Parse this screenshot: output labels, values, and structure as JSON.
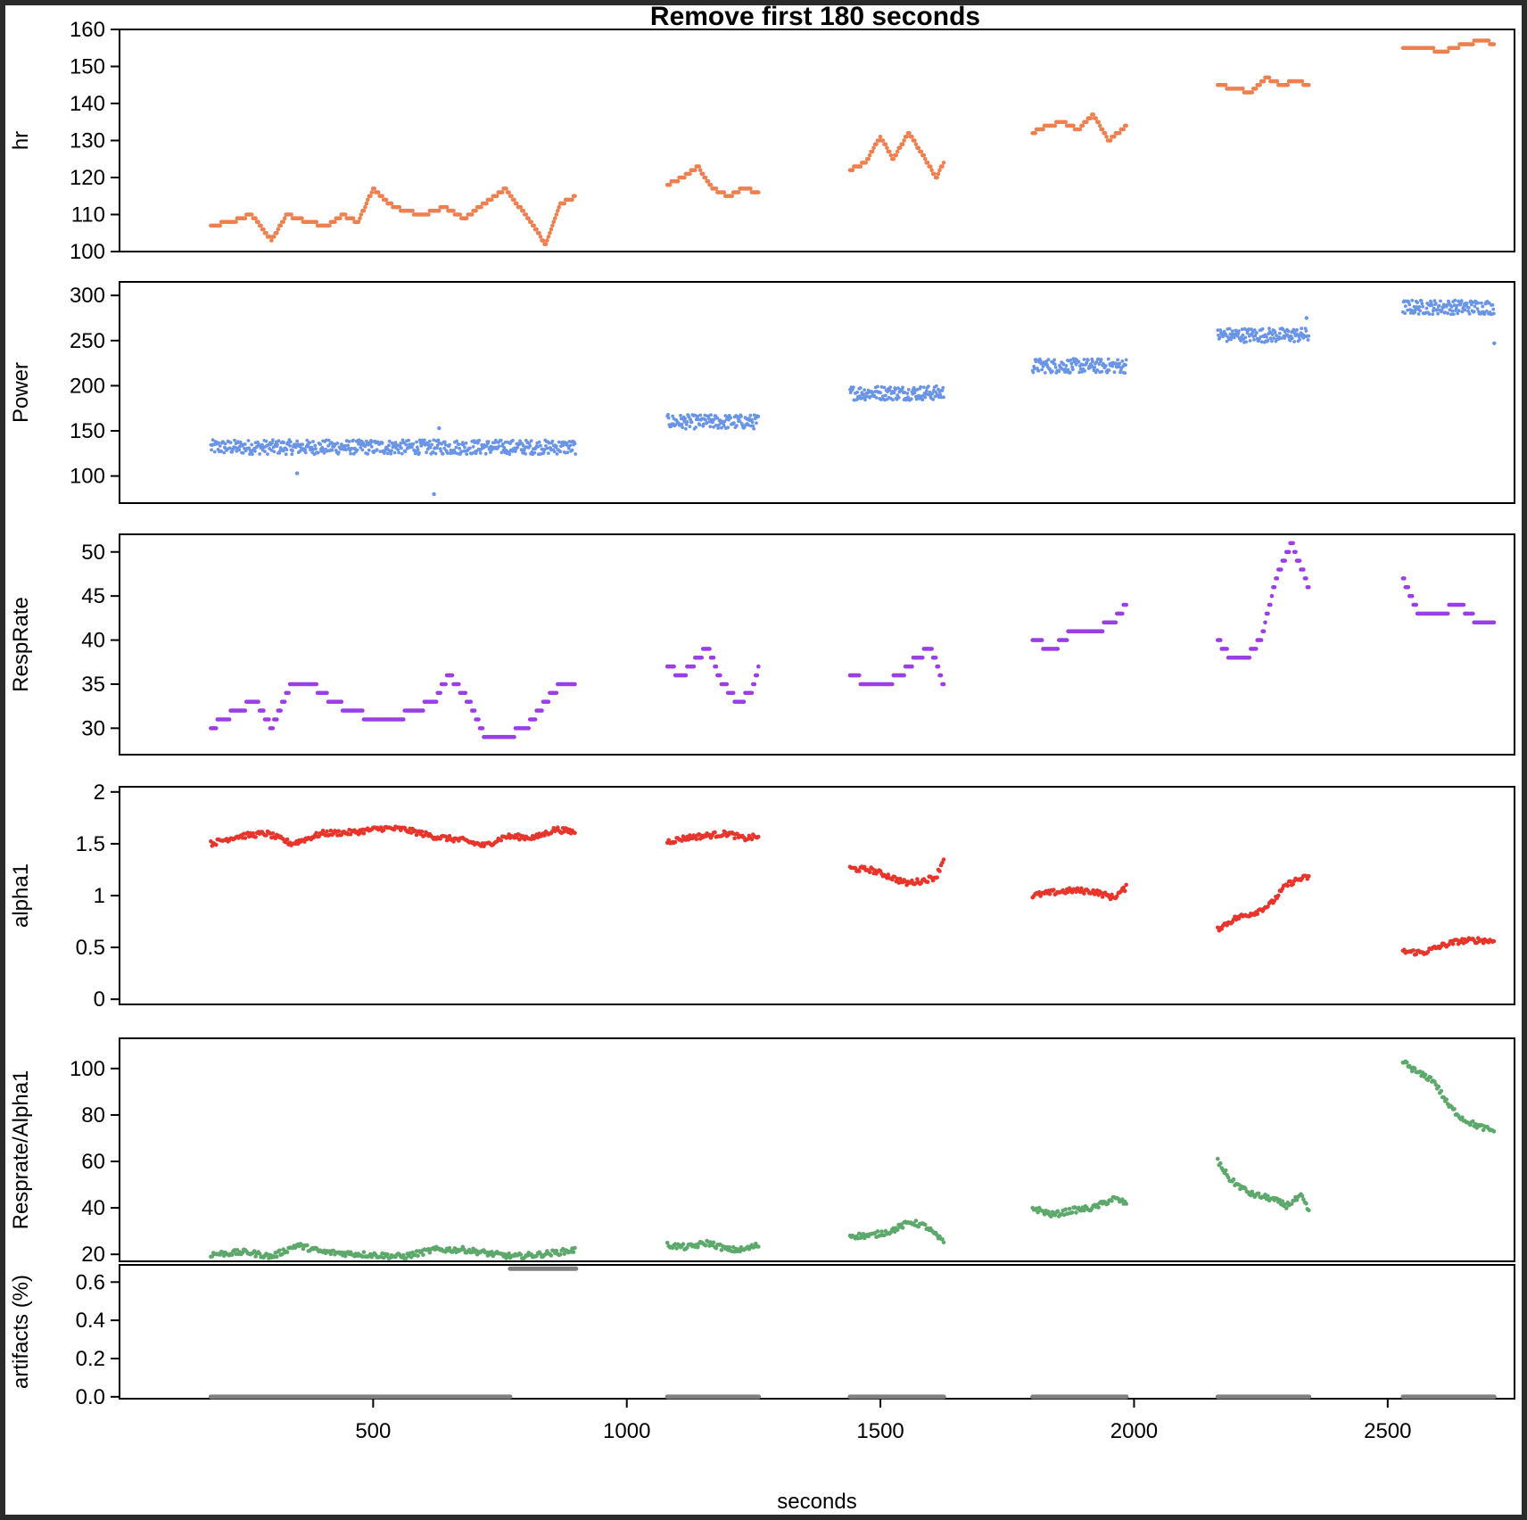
{
  "chart_data": {
    "type": "scatter",
    "title": "Remove first 180 seconds",
    "xlabel": "seconds",
    "xlim": [
      0,
      2750
    ],
    "xticks": [
      "500",
      "1000",
      "1500",
      "2000",
      "2500"
    ],
    "segments": [
      [
        180,
        900
      ],
      [
        1080,
        1260
      ],
      [
        1440,
        1625
      ],
      [
        1800,
        1985
      ],
      [
        2165,
        2345
      ],
      [
        2530,
        2710
      ]
    ],
    "panels": [
      {
        "ylabel": "hr",
        "color": "#EE8050",
        "ylim": [
          100,
          160
        ],
        "yticks": [
          "100",
          "110",
          "120",
          "130",
          "140",
          "150",
          "160"
        ],
        "series": [
          {
            "x": [
              180,
              220,
              260,
              300,
              330,
              370,
              410,
              440,
              470,
              500,
              530,
              560,
              600,
              640,
              680,
              720,
              760,
              800,
              840,
              870,
              900
            ],
            "y": [
              107,
              108,
              110,
              103,
              110,
              108,
              107,
              110,
              108,
              117,
              113,
              111,
              110,
              112,
              109,
              113,
              117,
              110,
              102,
              113,
              115
            ]
          },
          {
            "x": [
              1080,
              1110,
              1140,
              1170,
              1200,
              1230,
              1260
            ],
            "y": [
              118,
              120,
              123,
              117,
              115,
              117,
              116
            ]
          },
          {
            "x": [
              1440,
              1470,
              1500,
              1525,
              1555,
              1580,
              1610,
              1625
            ],
            "y": [
              122,
              124,
              131,
              125,
              132,
              127,
              120,
              124
            ]
          },
          {
            "x": [
              1800,
              1830,
              1860,
              1890,
              1920,
              1950,
              1985
            ],
            "y": [
              132,
              134,
              135,
              133,
              137,
              130,
              134
            ]
          },
          {
            "x": [
              2165,
              2200,
              2230,
              2260,
              2290,
              2320,
              2345
            ],
            "y": [
              145,
              144,
              143,
              147,
              145,
              146,
              145
            ]
          },
          {
            "x": [
              2530,
              2570,
              2610,
              2650,
              2690,
              2710
            ],
            "y": [
              155,
              155,
              154,
              156,
              157,
              156
            ]
          }
        ]
      },
      {
        "ylabel": "Power",
        "color": "#6A95E6",
        "ylim": [
          70,
          315
        ],
        "yticks": [
          "100",
          "150",
          "200",
          "250",
          "300"
        ],
        "series": [
          {
            "x": [
              180,
              900
            ],
            "y": [
              132,
              132
            ],
            "outliers": [
              [
                350,
                103
              ],
              [
                620,
                80
              ],
              [
                630,
                153
              ]
            ]
          },
          {
            "x": [
              1080,
              1260
            ],
            "y": [
              160,
              160
            ]
          },
          {
            "x": [
              1440,
              1625
            ],
            "y": [
              192,
              192
            ]
          },
          {
            "x": [
              1800,
              1985
            ],
            "y": [
              222,
              222
            ]
          },
          {
            "x": [
              2165,
              2345
            ],
            "y": [
              256,
              256
            ],
            "outliers": [
              [
                2340,
                275
              ]
            ]
          },
          {
            "x": [
              2530,
              2710
            ],
            "y": [
              287,
              287
            ],
            "outliers": [
              [
                2710,
                247
              ]
            ]
          }
        ]
      },
      {
        "ylabel": "RespRate",
        "color": "#9B3EE8",
        "ylim": [
          27,
          52
        ],
        "yticks": [
          "30",
          "35",
          "40",
          "45",
          "50"
        ],
        "series": [
          {
            "x": [
              180,
              230,
              270,
              300,
              340,
              380,
              420,
              460,
              500,
              540,
              580,
              620,
              650,
              690,
              720,
              760,
              800,
              840,
              870,
              900
            ],
            "y": [
              30,
              32,
              33,
              30,
              35,
              35,
              33,
              32,
              31,
              31,
              32,
              33,
              36,
              33,
              29,
              29,
              30,
              33,
              35,
              35
            ]
          },
          {
            "x": [
              1080,
              1110,
              1140,
              1160,
              1190,
              1220,
              1245,
              1260
            ],
            "y": [
              37,
              36,
              38,
              39,
              35,
              33,
              34,
              37
            ]
          },
          {
            "x": [
              1440,
              1480,
              1510,
              1540,
              1570,
              1600,
              1625
            ],
            "y": [
              36,
              35,
              35,
              36,
              38,
              39,
              35
            ]
          },
          {
            "x": [
              1800,
              1840,
              1880,
              1920,
              1960,
              1985
            ],
            "y": [
              40,
              39,
              41,
              41,
              42,
              44
            ]
          },
          {
            "x": [
              2165,
              2190,
              2220,
              2250,
              2280,
              2310,
              2345
            ],
            "y": [
              40,
              38,
              38,
              40,
              47,
              51,
              46
            ]
          },
          {
            "x": [
              2530,
              2560,
              2600,
              2640,
              2680,
              2710
            ],
            "y": [
              47,
              43,
              43,
              44,
              42,
              42
            ]
          }
        ]
      },
      {
        "ylabel": "alpha1",
        "color": "#E8352B",
        "ylim": [
          -0.05,
          2.05
        ],
        "yticks": [
          "0",
          "0.5",
          "1",
          "1.5",
          "2"
        ],
        "series": [
          {
            "x": [
              180,
              230,
              290,
              340,
              400,
              460,
              520,
              560,
              620,
              680,
              720,
              760,
              820,
              860,
              900
            ],
            "y": [
              1.5,
              1.57,
              1.6,
              1.5,
              1.6,
              1.61,
              1.65,
              1.64,
              1.57,
              1.53,
              1.48,
              1.57,
              1.56,
              1.64,
              1.61
            ]
          },
          {
            "x": [
              1080,
              1120,
              1160,
              1200,
              1230,
              1260
            ],
            "y": [
              1.52,
              1.56,
              1.58,
              1.6,
              1.55,
              1.57
            ]
          },
          {
            "x": [
              1440,
              1480,
              1520,
              1550,
              1580,
              1610,
              1625
            ],
            "y": [
              1.26,
              1.25,
              1.18,
              1.12,
              1.14,
              1.18,
              1.36
            ]
          },
          {
            "x": [
              1800,
              1840,
              1880,
              1920,
              1960,
              1985
            ],
            "y": [
              1.0,
              1.03,
              1.05,
              1.04,
              0.98,
              1.08
            ]
          },
          {
            "x": [
              2165,
              2200,
              2240,
              2270,
              2300,
              2320,
              2345
            ],
            "y": [
              0.68,
              0.78,
              0.84,
              0.92,
              1.1,
              1.15,
              1.18
            ]
          },
          {
            "x": [
              2530,
              2570,
              2610,
              2640,
              2680,
              2710
            ],
            "y": [
              0.46,
              0.45,
              0.52,
              0.56,
              0.57,
              0.56
            ]
          }
        ]
      },
      {
        "ylabel": "Resprate/Alpha1",
        "color": "#5DA86B",
        "ylim": [
          17,
          113
        ],
        "yticks": [
          "20",
          "40",
          "60",
          "80",
          "100"
        ],
        "series": [
          {
            "x": [
              180,
              250,
              300,
              350,
              400,
              480,
              560,
              620,
              680,
              740,
              780,
              830,
              870,
              900
            ],
            "y": [
              20,
              21,
              19,
              24,
              21,
              20,
              19,
              22,
              22,
              20,
              19,
              20,
              21,
              22
            ]
          },
          {
            "x": [
              1080,
              1120,
              1160,
              1200,
              1230,
              1260
            ],
            "y": [
              24,
              23,
              25,
              22,
              22,
              24
            ]
          },
          {
            "x": [
              1440,
              1480,
              1520,
              1560,
              1590,
              1625
            ],
            "y": [
              28,
              28,
              30,
              34,
              32,
              25
            ]
          },
          {
            "x": [
              1800,
              1840,
              1880,
              1920,
              1960,
              1985
            ],
            "y": [
              40,
              37,
              39,
              40,
              44,
              42
            ]
          },
          {
            "x": [
              2165,
              2190,
              2230,
              2270,
              2300,
              2330,
              2345
            ],
            "y": [
              60,
              52,
              46,
              44,
              41,
              45,
              38
            ]
          },
          {
            "x": [
              2530,
              2560,
              2590,
              2620,
              2650,
              2680,
              2710
            ],
            "y": [
              103,
              98,
              95,
              84,
              78,
              75,
              73
            ]
          }
        ]
      },
      {
        "ylabel": "artifacts (%)",
        "color": "#808080",
        "ylim": [
          -0.01,
          0.69
        ],
        "yticks": [
          "0.0",
          "0.2",
          "0.4",
          "0.6"
        ],
        "series": [
          {
            "x": [
              180,
              770
            ],
            "y": [
              0.0,
              0.0
            ]
          },
          {
            "x": [
              770,
              900
            ],
            "y": [
              0.67,
              0.67
            ]
          },
          {
            "x": [
              1080,
              1260
            ],
            "y": [
              0.0,
              0.0
            ]
          },
          {
            "x": [
              1440,
              1625
            ],
            "y": [
              0.0,
              0.0
            ]
          },
          {
            "x": [
              1800,
              1985
            ],
            "y": [
              0.0,
              0.0
            ]
          },
          {
            "x": [
              2165,
              2345
            ],
            "y": [
              0.0,
              0.0
            ]
          },
          {
            "x": [
              2530,
              2710
            ],
            "y": [
              0.0,
              0.0
            ]
          }
        ]
      }
    ]
  }
}
